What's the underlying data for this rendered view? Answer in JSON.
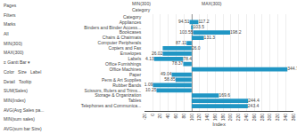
{
  "chart_data": {
    "type": "bar",
    "orientation": "horizontal",
    "categories": [
      "Category",
      "Appliances",
      "Binders and Binder Access...",
      "Bookcases",
      "Chairs & Chairmats",
      "Computer Peripherals",
      "Copiers and Fax",
      "Envelopes",
      "Labels",
      "Office Furnishings",
      "Office Machines",
      "Paper",
      "Pens & Art Supplies",
      "Rubber Bands",
      "Scissors, Rulers and Trims...",
      "Storage & Organization",
      "Tables",
      "Telephones and Communica..."
    ],
    "starts": [
      100,
      94.51,
      100,
      103.55,
      100,
      87.11,
      100,
      26.02,
      4.13,
      78.37,
      100,
      49.04,
      58.85,
      1.09,
      10.25,
      100,
      100,
      100
    ],
    "ends": [
      100,
      117.2,
      103.55,
      198.2,
      131.3,
      100,
      26.02,
      100,
      78.37,
      100,
      344.7,
      100,
      100,
      100,
      100,
      169.6,
      244.4,
      243.4
    ],
    "color": "#2196C4",
    "data_labels": true,
    "start_labels": [
      null,
      "94.51",
      null,
      "103.55",
      null,
      "87.11",
      null,
      "26.02",
      "4.13",
      "78.37",
      null,
      "49.04",
      "58.85",
      "1.09",
      "10.25",
      null,
      null,
      null
    ],
    "end_labels": [
      null,
      "117.2",
      "103.5",
      "198.2",
      "131.3",
      null,
      "26.0",
      null,
      "78.4",
      null,
      "344.7",
      null,
      null,
      null,
      null,
      "169.6",
      "244.4",
      "243.4"
    ],
    "center_line": 100,
    "xlabel": "Index",
    "xlim": [
      -20,
      360
    ],
    "xticks": [
      -20,
      0,
      20,
      40,
      60,
      80,
      100,
      120,
      140,
      160,
      180,
      200,
      220,
      240,
      260,
      280,
      300,
      320,
      340,
      360
    ],
    "grid": true,
    "annotations": {
      "panel": [
        "Pages",
        "Filters",
        "Marks",
        "All",
        "MIN(300)",
        "MAX(300)",
        "≡ Gantt Bar ▾",
        "Color   Size   Label",
        "Detail   Tooltip",
        "SUM(Sales)",
        "MIN(Index)",
        "AVG(Avg Sales pa...",
        "MIN(sum sales)",
        "AVG(sum bar Size)"
      ],
      "columns": [
        "MIN(300)",
        "MAX(300)"
      ],
      "rows": [
        "Category"
      ]
    }
  }
}
